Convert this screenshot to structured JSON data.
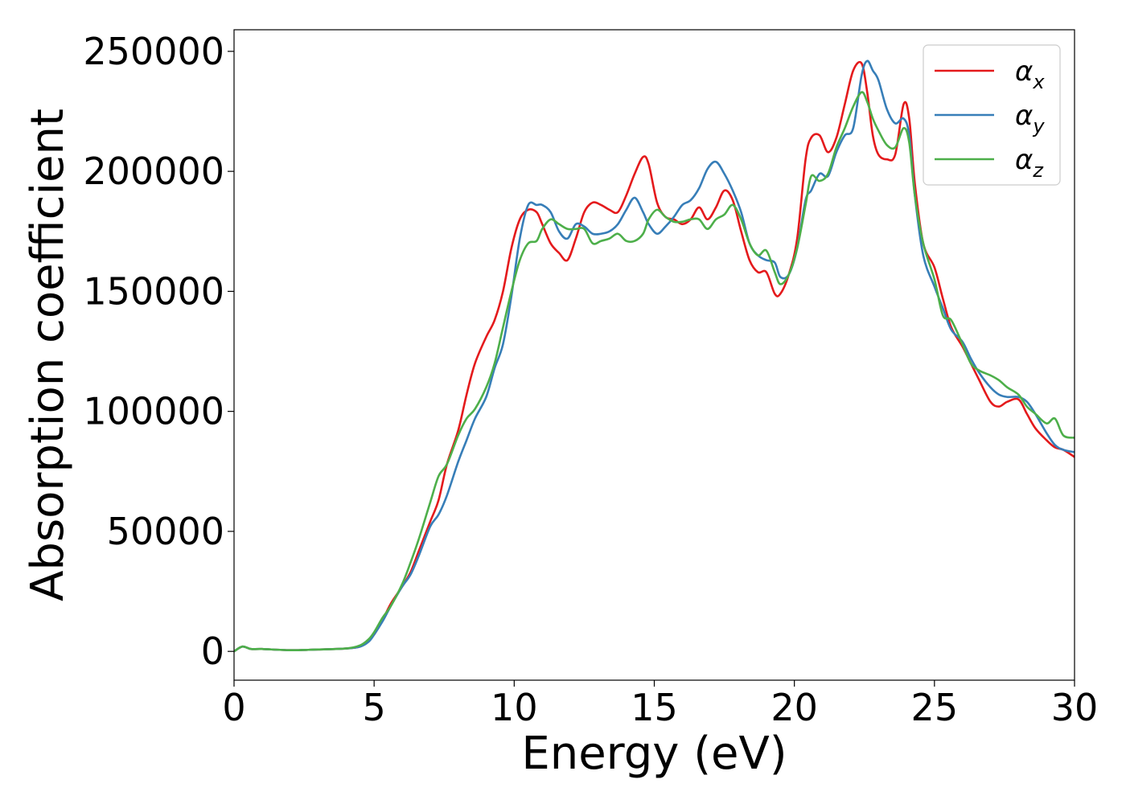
{
  "chart_data": {
    "type": "line",
    "title": "",
    "xlabel": "Energy (eV)",
    "ylabel": "Absorption coefficient",
    "xlim": [
      0,
      30
    ],
    "ylim": [
      -12000,
      259000
    ],
    "xticks": [
      0,
      5,
      10,
      15,
      20,
      25,
      30
    ],
    "yticks": [
      0,
      50000,
      100000,
      150000,
      200000,
      250000
    ],
    "grid": false,
    "legend_position": "top-right",
    "series": [
      {
        "name": "α_x",
        "label_main": "α",
        "label_sub": "x",
        "color": "#e41a1c",
        "x": [
          0,
          0.3,
          0.6,
          1,
          2,
          3,
          4,
          4.5,
          4.8,
          5,
          5.3,
          5.6,
          6,
          6.3,
          6.6,
          7,
          7.3,
          7.6,
          8,
          8.3,
          8.6,
          9,
          9.3,
          9.6,
          9.9,
          10.2,
          10.5,
          10.8,
          11,
          11.3,
          11.6,
          11.9,
          12.2,
          12.5,
          12.8,
          13.1,
          13.4,
          13.7,
          14,
          14.3,
          14.6,
          14.8,
          15.1,
          15.4,
          15.7,
          16,
          16.3,
          16.6,
          16.9,
          17.2,
          17.5,
          17.8,
          18.1,
          18.4,
          18.7,
          19,
          19.3,
          19.5,
          19.8,
          20.1,
          20.4,
          20.6,
          20.9,
          21.2,
          21.5,
          21.8,
          22.1,
          22.4,
          22.6,
          22.8,
          23,
          23.3,
          23.6,
          23.9,
          24.1,
          24.3,
          24.6,
          25,
          25.3,
          25.6,
          26,
          26.3,
          26.6,
          27,
          27.3,
          27.6,
          28,
          28.3,
          28.6,
          29,
          29.3,
          29.6,
          30
        ],
        "values": [
          0,
          2000,
          1000,
          1000,
          500,
          800,
          1200,
          2000,
          4500,
          7000,
          13000,
          20000,
          27000,
          33000,
          42000,
          54000,
          63000,
          78000,
          92000,
          107000,
          120000,
          131000,
          138000,
          150000,
          168000,
          180000,
          184000,
          183000,
          178000,
          170000,
          166000,
          163000,
          172000,
          183000,
          187000,
          186000,
          184000,
          183000,
          190000,
          199000,
          206000,
          203000,
          187000,
          181000,
          180000,
          178000,
          180000,
          185000,
          180000,
          185000,
          192000,
          188000,
          175000,
          163000,
          158000,
          158000,
          149000,
          149000,
          157000,
          172000,
          205000,
          214000,
          215000,
          208000,
          214000,
          228000,
          242000,
          245000,
          233000,
          215000,
          207000,
          205000,
          207000,
          228000,
          222000,
          195000,
          170000,
          160000,
          147000,
          135000,
          127000,
          120000,
          113000,
          104000,
          102000,
          104000,
          105000,
          99000,
          93000,
          88000,
          85000,
          84000,
          81000
        ]
      },
      {
        "name": "α_y",
        "label_main": "α",
        "label_sub": "y",
        "color": "#377eb8",
        "x": [
          0,
          0.3,
          0.6,
          1,
          2,
          3,
          4,
          4.5,
          4.8,
          5,
          5.3,
          5.6,
          6,
          6.3,
          6.6,
          7,
          7.3,
          7.6,
          8,
          8.3,
          8.6,
          9,
          9.3,
          9.6,
          9.9,
          10.2,
          10.5,
          10.8,
          11,
          11.3,
          11.6,
          11.9,
          12.2,
          12.5,
          12.8,
          13.1,
          13.4,
          13.7,
          14,
          14.3,
          14.6,
          14.8,
          15.1,
          15.4,
          15.7,
          16,
          16.3,
          16.6,
          16.9,
          17.2,
          17.5,
          17.8,
          18.1,
          18.4,
          18.7,
          19,
          19.3,
          19.5,
          19.8,
          20.1,
          20.4,
          20.6,
          20.9,
          21.2,
          21.5,
          21.8,
          22.1,
          22.4,
          22.6,
          22.8,
          23,
          23.3,
          23.6,
          23.9,
          24.1,
          24.3,
          24.6,
          25,
          25.3,
          25.6,
          26,
          26.3,
          26.6,
          27,
          27.3,
          27.6,
          28,
          28.3,
          28.6,
          29,
          29.3,
          29.6,
          30
        ],
        "values": [
          0,
          2000,
          1000,
          1000,
          500,
          800,
          1200,
          2000,
          4000,
          7000,
          12500,
          19000,
          27000,
          32000,
          40000,
          52000,
          57000,
          65000,
          79000,
          88000,
          97000,
          106000,
          118000,
          128000,
          148000,
          172000,
          186000,
          186000,
          186000,
          183000,
          175000,
          172000,
          178000,
          177000,
          174000,
          174000,
          175000,
          178000,
          184000,
          189000,
          183000,
          178000,
          174000,
          177000,
          181000,
          186000,
          188000,
          193000,
          201000,
          204000,
          199000,
          192000,
          183000,
          170000,
          165000,
          163000,
          162000,
          156000,
          157000,
          168000,
          188000,
          192000,
          199000,
          198000,
          208000,
          215000,
          218000,
          240000,
          246000,
          242000,
          238000,
          226000,
          220000,
          222000,
          215000,
          190000,
          165000,
          152000,
          143000,
          134000,
          129000,
          122000,
          116000,
          110000,
          107000,
          106000,
          106000,
          104000,
          99000,
          91000,
          86000,
          84000,
          83000
        ]
      },
      {
        "name": "α_z",
        "label_main": "α",
        "label_sub": "z",
        "color": "#4daf4a",
        "x": [
          0,
          0.3,
          0.6,
          1,
          2,
          3,
          4,
          4.5,
          4.8,
          5,
          5.3,
          5.6,
          6,
          6.3,
          6.6,
          7,
          7.3,
          7.6,
          8,
          8.3,
          8.6,
          9,
          9.3,
          9.6,
          9.9,
          10.2,
          10.5,
          10.8,
          11,
          11.3,
          11.6,
          11.9,
          12.2,
          12.5,
          12.8,
          13.1,
          13.4,
          13.7,
          14,
          14.3,
          14.6,
          14.8,
          15.1,
          15.4,
          15.7,
          16,
          16.3,
          16.6,
          16.9,
          17.2,
          17.5,
          17.8,
          18.1,
          18.4,
          18.7,
          19,
          19.3,
          19.5,
          19.8,
          20.1,
          20.4,
          20.6,
          20.9,
          21.2,
          21.5,
          21.8,
          22.1,
          22.4,
          22.6,
          22.8,
          23,
          23.3,
          23.6,
          23.9,
          24.1,
          24.3,
          24.6,
          25,
          25.3,
          25.6,
          26,
          26.3,
          26.6,
          27,
          27.3,
          27.6,
          28,
          28.3,
          28.6,
          29,
          29.3,
          29.6,
          30
        ],
        "values": [
          0,
          2000,
          1000,
          1000,
          500,
          800,
          1200,
          2500,
          5000,
          8000,
          14000,
          19000,
          28000,
          37000,
          47000,
          62000,
          73000,
          78000,
          90000,
          97000,
          101000,
          110000,
          120000,
          135000,
          150000,
          163000,
          170000,
          171000,
          176000,
          180000,
          178000,
          176000,
          176000,
          176000,
          170000,
          171000,
          172000,
          174000,
          171000,
          171000,
          174000,
          180000,
          184000,
          181000,
          179000,
          179000,
          180000,
          180000,
          176000,
          180000,
          182000,
          186000,
          180000,
          170000,
          165000,
          167000,
          158000,
          153000,
          157000,
          168000,
          186000,
          198000,
          196000,
          199000,
          210000,
          218000,
          227000,
          233000,
          229000,
          222000,
          217000,
          211000,
          210000,
          218000,
          212000,
          190000,
          170000,
          155000,
          140000,
          138000,
          128000,
          120000,
          117000,
          115000,
          113000,
          110000,
          107000,
          102000,
          99000,
          95000,
          97000,
          90000,
          89000
        ]
      }
    ]
  }
}
